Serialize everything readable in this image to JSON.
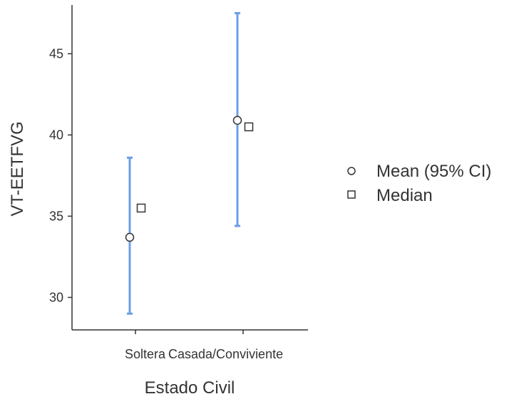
{
  "chart_data": {
    "type": "scatter",
    "title": "",
    "xlabel": "Estado Civil",
    "ylabel": "VT-EETFVG",
    "categories": [
      "Soltera",
      "Casada/Conviviente"
    ],
    "ylim": [
      28,
      48
    ],
    "yticks": [
      30,
      35,
      40,
      45
    ],
    "grid": false,
    "legend_position": "right",
    "series": [
      {
        "name": "Mean (95% CI)",
        "marker": "circle",
        "values": [
          33.7,
          40.9
        ],
        "ci_lower": [
          29.0,
          34.4
        ],
        "ci_upper": [
          38.6,
          47.5
        ]
      },
      {
        "name": "Median",
        "marker": "square",
        "values": [
          35.5,
          40.5
        ]
      }
    ],
    "colors": {
      "error_bar": "#6a9de8",
      "marker_stroke": "#333333",
      "marker_fill": "#ffffff",
      "axis": "#333333"
    }
  }
}
